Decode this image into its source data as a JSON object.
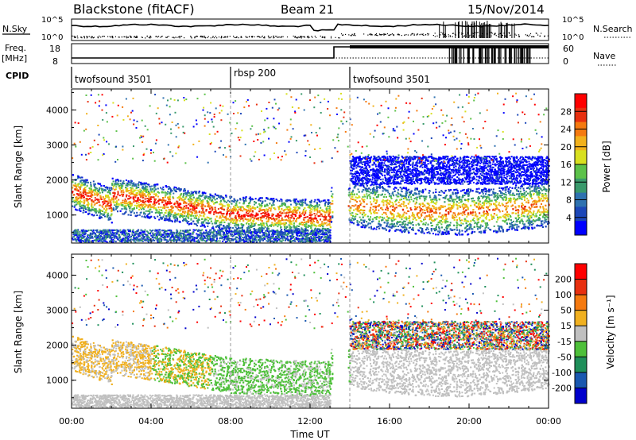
{
  "header": {
    "station": "Blackstone (fitACF)",
    "beam": "Beam 21",
    "date": "15/Nov/2014"
  },
  "noise_panel": {
    "left_label": "N.Sky",
    "right_label": "N.Search",
    "y_ticks": [
      "10^5",
      "10^0"
    ]
  },
  "freq_panel": {
    "left_label_1": "Freq.",
    "left_label_2": "[MHz]",
    "left_ticks": [
      "18",
      "8"
    ],
    "right_label": "Nave",
    "right_ticks": [
      "60",
      "0"
    ]
  },
  "cpid": {
    "label": "CPID",
    "segments": [
      {
        "name": "twofsound 3501",
        "start_hour": 0,
        "end_hour": 8
      },
      {
        "name": "rbsp 200",
        "start_hour": 8,
        "end_hour": 14
      },
      {
        "name": "twofsound 3501",
        "start_hour": 14,
        "end_hour": 24
      }
    ]
  },
  "x_axis": {
    "label": "Time UT",
    "ticks": [
      "00:00",
      "04:00",
      "08:00",
      "12:00",
      "16:00",
      "20:00",
      "00:00"
    ]
  },
  "chart_data": [
    {
      "type": "heatmap",
      "name": "power",
      "ylabel": "Slant Range [km]",
      "xlim": [
        0,
        24
      ],
      "ylim": [
        200,
        4600
      ],
      "yticks": [
        1000,
        2000,
        3000,
        4000
      ],
      "colorbar_label": "Power [dB]",
      "colorbar_ticks": [
        28,
        24,
        20,
        16,
        12,
        8,
        4
      ],
      "colorbar_colors": [
        "#0000ff",
        "#1c47b8",
        "#2f72b0",
        "#3a9a6c",
        "#5cc24a",
        "#d8e020",
        "#f2b11c",
        "#f57a10",
        "#e83010",
        "#ff0000"
      ]
    },
    {
      "type": "heatmap",
      "name": "velocity",
      "ylabel": "Slant Range [km]",
      "xlim": [
        0,
        24
      ],
      "ylim": [
        200,
        4600
      ],
      "yticks": [
        1000,
        2000,
        3000,
        4000
      ],
      "colorbar_label": "Velocity [m s⁻¹]",
      "colorbar_ticks": [
        200,
        100,
        50,
        15,
        -15,
        -50,
        -100,
        -200
      ],
      "colorbar_colors": [
        "#0000cc",
        "#1a58b0",
        "#1f8f5a",
        "#4ec03a",
        "#c0c0c0",
        "#f0b020",
        "#f57a10",
        "#e83010",
        "#ff0000"
      ]
    }
  ]
}
